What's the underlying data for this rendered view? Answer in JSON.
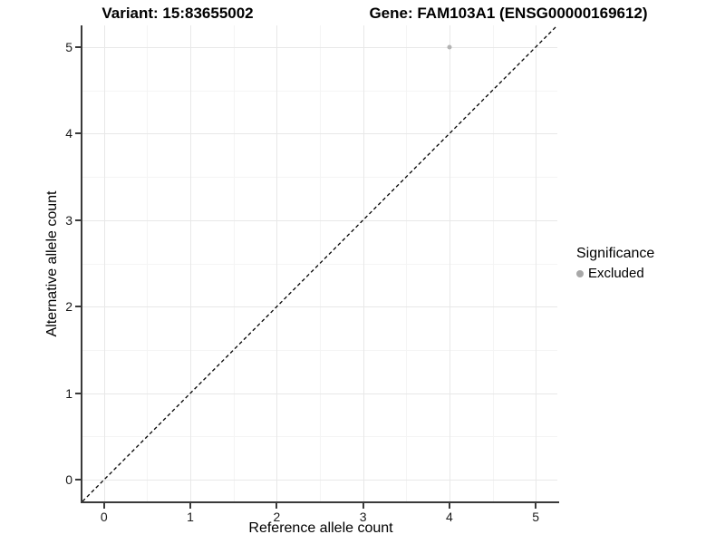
{
  "chart_data": {
    "type": "scatter",
    "title_left": "Variant: 15:83655002",
    "title_right": "Gene: FAM103A1 (ENSG00000169612)",
    "xlabel": "Reference allele count",
    "ylabel": "Alternative allele count",
    "xlim": [
      -0.25,
      5.25
    ],
    "ylim": [
      -0.25,
      5.25
    ],
    "x_ticks": [
      0,
      1,
      2,
      3,
      4,
      5
    ],
    "y_ticks": [
      0,
      1,
      2,
      3,
      4,
      5
    ],
    "grid": {
      "major": true,
      "minor": true,
      "major_color": "#e8e8e8",
      "minor_color": "#f4f4f4"
    },
    "reference_line": {
      "type": "identity",
      "slope": 1,
      "intercept": 0,
      "style": "dashed",
      "color": "#000000"
    },
    "points": [
      {
        "x": 4,
        "y": 5,
        "significance": "Excluded",
        "color": "#b3b3b3",
        "radius": 2.5
      }
    ],
    "legend": {
      "title": "Significance",
      "position": "right",
      "items": [
        {
          "label": "Excluded",
          "color": "#a8a8a8"
        }
      ]
    },
    "axis_color": "#3a3a3a",
    "background_color": "#ffffff"
  }
}
